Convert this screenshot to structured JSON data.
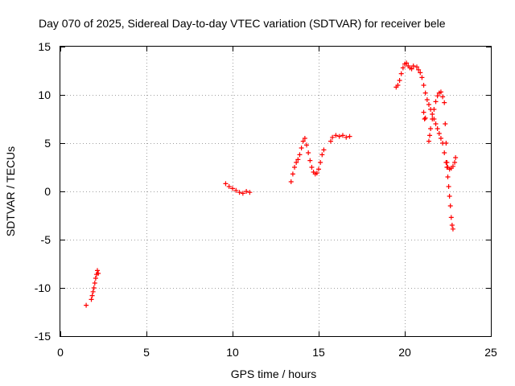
{
  "chart_data": {
    "type": "scatter",
    "title": "Day 070 of 2025, Sidereal Day-to-day VTEC variation (SDTVAR) for receiver bele",
    "xlabel": "GPS time / hours",
    "ylabel": "SDTVAR / TECUs",
    "xlim": [
      0,
      25
    ],
    "ylim": [
      -15,
      15
    ],
    "xticks": [
      0,
      5,
      10,
      15,
      20,
      25
    ],
    "yticks": [
      -15,
      -10,
      -5,
      0,
      5,
      10,
      15
    ],
    "xtick_labels": [
      "0",
      "5",
      "10",
      "15",
      "20",
      "25"
    ],
    "ytick_labels": [
      "-15",
      "-10",
      "-5",
      "0",
      "5",
      "10",
      "15"
    ],
    "grid": true,
    "marker": "+",
    "color": "#ff0000",
    "series": [
      {
        "name": "SDTVAR",
        "points": [
          [
            1.5,
            -11.8
          ],
          [
            1.8,
            -11.2
          ],
          [
            1.85,
            -10.8
          ],
          [
            1.9,
            -10.4
          ],
          [
            1.95,
            -10.0
          ],
          [
            2.0,
            -9.5
          ],
          [
            2.05,
            -9.0
          ],
          [
            2.1,
            -8.6
          ],
          [
            2.15,
            -8.2
          ],
          [
            2.2,
            -8.5
          ],
          [
            9.6,
            0.8
          ],
          [
            9.8,
            0.5
          ],
          [
            10.0,
            0.3
          ],
          [
            10.2,
            0.1
          ],
          [
            10.4,
            -0.1
          ],
          [
            10.6,
            -0.2
          ],
          [
            10.8,
            0.0
          ],
          [
            11.0,
            -0.1
          ],
          [
            13.4,
            1.0
          ],
          [
            13.5,
            1.8
          ],
          [
            13.6,
            2.5
          ],
          [
            13.7,
            3.0
          ],
          [
            13.8,
            3.3
          ],
          [
            13.9,
            3.8
          ],
          [
            14.0,
            4.5
          ],
          [
            14.1,
            5.2
          ],
          [
            14.2,
            5.5
          ],
          [
            14.3,
            4.8
          ],
          [
            14.4,
            4.0
          ],
          [
            14.5,
            3.2
          ],
          [
            14.6,
            2.5
          ],
          [
            14.7,
            2.0
          ],
          [
            14.8,
            1.8
          ],
          [
            14.9,
            1.9
          ],
          [
            15.0,
            2.3
          ],
          [
            15.1,
            3.0
          ],
          [
            15.2,
            3.8
          ],
          [
            15.3,
            4.3
          ],
          [
            15.7,
            5.2
          ],
          [
            15.8,
            5.6
          ],
          [
            16.0,
            5.8
          ],
          [
            16.2,
            5.7
          ],
          [
            16.4,
            5.8
          ],
          [
            16.6,
            5.6
          ],
          [
            16.8,
            5.7
          ],
          [
            19.5,
            10.8
          ],
          [
            19.6,
            11.0
          ],
          [
            19.7,
            11.5
          ],
          [
            19.8,
            12.2
          ],
          [
            19.9,
            12.8
          ],
          [
            20.0,
            13.2
          ],
          [
            20.1,
            13.3
          ],
          [
            20.2,
            13.0
          ],
          [
            20.3,
            12.8
          ],
          [
            20.4,
            12.7
          ],
          [
            20.5,
            13.0
          ],
          [
            20.7,
            12.9
          ],
          [
            20.8,
            12.6
          ],
          [
            20.9,
            12.3
          ],
          [
            21.0,
            11.8
          ],
          [
            21.1,
            11.0
          ],
          [
            21.2,
            10.2
          ],
          [
            21.3,
            9.5
          ],
          [
            21.4,
            9.0
          ],
          [
            21.5,
            8.5
          ],
          [
            21.6,
            8.0
          ],
          [
            21.7,
            7.5
          ],
          [
            21.8,
            7.0
          ],
          [
            21.9,
            6.5
          ],
          [
            22.0,
            6.0
          ],
          [
            22.1,
            5.5
          ],
          [
            22.2,
            5.0
          ],
          [
            22.3,
            4.0
          ],
          [
            22.4,
            3.0
          ],
          [
            22.45,
            2.5
          ],
          [
            22.5,
            1.5
          ],
          [
            22.55,
            0.5
          ],
          [
            22.6,
            -0.5
          ],
          [
            22.65,
            -1.5
          ],
          [
            22.7,
            -2.7
          ],
          [
            22.75,
            -3.5
          ],
          [
            22.8,
            -3.9
          ],
          [
            21.1,
            8.2
          ],
          [
            21.15,
            7.5
          ],
          [
            21.2,
            7.6
          ],
          [
            21.4,
            5.2
          ],
          [
            21.45,
            5.8
          ],
          [
            21.5,
            6.5
          ],
          [
            21.6,
            7.5
          ],
          [
            21.7,
            8.5
          ],
          [
            21.8,
            9.3
          ],
          [
            21.9,
            9.9
          ],
          [
            22.0,
            10.2
          ],
          [
            22.1,
            10.3
          ],
          [
            22.2,
            9.8
          ],
          [
            22.3,
            9.2
          ],
          [
            22.35,
            7.0
          ],
          [
            22.4,
            5.0
          ],
          [
            22.45,
            3.0
          ],
          [
            22.5,
            2.5
          ],
          [
            22.6,
            2.3
          ],
          [
            22.7,
            2.4
          ],
          [
            22.8,
            2.6
          ],
          [
            22.9,
            3.0
          ],
          [
            22.95,
            3.5
          ]
        ]
      }
    ]
  }
}
